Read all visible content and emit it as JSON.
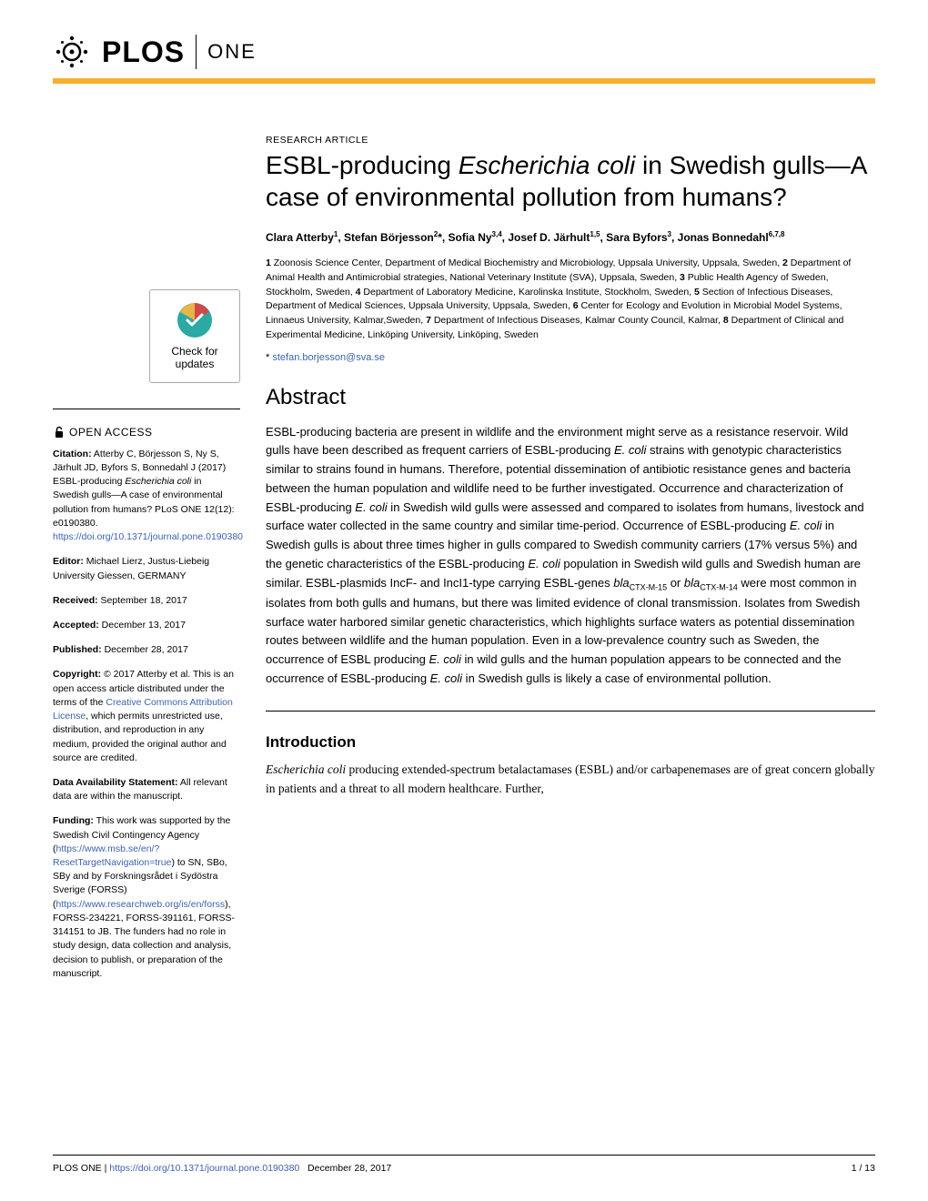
{
  "header": {
    "journal_brand": "PLOS",
    "journal_name": "ONE"
  },
  "article": {
    "type": "RESEARCH ARTICLE",
    "title_part1": "ESBL-producing ",
    "title_italic": "Escherichia coli",
    "title_part2": " in Swedish gulls—A case of environmental pollution from humans?",
    "authors_html": "Clara Atterby<sup>1</sup>, Stefan Börjesson<sup>2</sup>*, Sofia Ny<sup>3,4</sup>, Josef D. Järhult<sup>1,5</sup>, Sara Byfors<sup>3</sup>, Jonas Bonnedahl<sup>6,7,8</sup>",
    "affiliations": "1 Zoonosis Science Center, Department of Medical Biochemistry and Microbiology, Uppsala University, Uppsala, Sweden, 2 Department of Animal Health and Antimicrobial strategies, National Veterinary Institute (SVA), Uppsala, Sweden, 3 Public Health Agency of Sweden, Stockholm, Sweden, 4 Department of Laboratory Medicine, Karolinska Institute, Stockholm, Sweden, 5 Section of Infectious Diseases, Department of Medical Sciences, Uppsala University, Uppsala, Sweden, 6 Center for Ecology and Evolution in Microbial Model Systems, Linnaeus University, Kalmar,Sweden, 7 Department of Infectious Diseases, Kalmar County Council, Kalmar, 8 Department of Clinical and Experimental Medicine, Linköping University, Linköping, Sweden",
    "corr_asterisk": "*",
    "corr_email": "stefan.borjesson@sva.se"
  },
  "abstract": {
    "heading": "Abstract",
    "text_html": "ESBL-producing bacteria are present in wildlife and the environment might serve as a resistance reservoir. Wild gulls have been described as frequent carriers of ESBL-producing <span class=\"italic\">E. coli</span> strains with genotypic characteristics similar to strains found in humans. Therefore, potential dissemination of antibiotic resistance genes and bacteria between the human population and wildlife need to be further investigated. Occurrence and characterization of ESBL-producing <span class=\"italic\">E. coli</span> in Swedish wild gulls were assessed and compared to isolates from humans, livestock and surface water collected in the same country and similar time-period. Occurrence of ESBL-producing <span class=\"italic\">E. coli</span> in Swedish gulls is about three times higher in gulls compared to Swedish community carriers (17% versus 5%) and the genetic characteristics of the ESBL-producing <span class=\"italic\">E. coli</span> population in Swedish wild gulls and Swedish human are similar. ESBL-plasmids IncF- and IncI1-type carrying ESBL-genes <span class=\"italic\">bla</span><sub>CTX-M-15</sub> or <span class=\"italic\">bla</span><sub>CTX-M-14</sub> were most common in isolates from both gulls and humans, but there was limited evidence of clonal transmission. Isolates from Swedish surface water harbored similar genetic characteristics, which highlights surface waters as potential dissemination routes between wildlife and the human population. Even in a low-prevalence country such as Sweden, the occurrence of ESBL producing <span class=\"italic\">E. coli</span> in wild gulls and the human population appears to be connected and the occurrence of ESBL-producing <span class=\"italic\">E. coli</span> in Swedish gulls is likely a case of environmental pollution."
  },
  "introduction": {
    "heading": "Introduction",
    "text_html": "<span class=\"italic\">Escherichia coli</span> producing extended-spectrum betalactamases (ESBL) and/or carbapenemases are of great concern globally in patients and a threat to all modern healthcare. Further,"
  },
  "sidebar": {
    "check_updates": "Check for updates",
    "open_access": "OPEN ACCESS",
    "citation": {
      "label": "Citation:",
      "text_html": " Atterby C, Börjesson S, Ny S, Järhult JD, Byfors S, Bonnedahl J (2017) ESBL-producing <span class=\"italic\">Escherichia coli</span> in Swedish gulls—A case of environmental pollution from humans? PLoS ONE 12(12): e0190380. ",
      "link": "https://doi.org/10.1371/journal.pone.0190380"
    },
    "editor": {
      "label": "Editor:",
      "text": " Michael Lierz, Justus-Liebeig University Giessen, GERMANY"
    },
    "received": {
      "label": "Received:",
      "text": " September 18, 2017"
    },
    "accepted": {
      "label": "Accepted:",
      "text": " December 13, 2017"
    },
    "published": {
      "label": "Published:",
      "text": " December 28, 2017"
    },
    "copyright": {
      "label": "Copyright:",
      "text_pre": " © 2017 Atterby et al. This is an open access article distributed under the terms of the ",
      "link": "Creative Commons Attribution License",
      "text_post": ", which permits unrestricted use, distribution, and reproduction in any medium, provided the original author and source are credited."
    },
    "data": {
      "label": "Data Availability Statement:",
      "text": " All relevant data are within the manuscript."
    },
    "funding": {
      "label": "Funding:",
      "text_pre": " This work was supported by the Swedish Civil Contingency Agency (",
      "link1": "https://www.msb.se/en/?ResetTargetNavigation=true",
      "text_mid": ") to SN, SBo, SBy and by Forskningsrådet i Sydöstra Sverige (FORSS) (",
      "link2": "https://www.researchweb.org/is/en/forss",
      "text_post": "), FORSS-234221, FORSS-391161, FORSS-314151 to JB. The funders had no role in study design, data collection and analysis, decision to publish, or preparation of the manuscript."
    }
  },
  "footer": {
    "journal": "PLOS ONE | ",
    "doi": "https://doi.org/10.1371/journal.pone.0190380",
    "date": "December 28, 2017",
    "page": "1 / 13"
  },
  "colors": {
    "accent_orange": "#f8af2d",
    "link_blue": "#3c63af",
    "check_teal": "#2ca9a5",
    "check_gold": "#e8b544",
    "check_red": "#d14848"
  }
}
